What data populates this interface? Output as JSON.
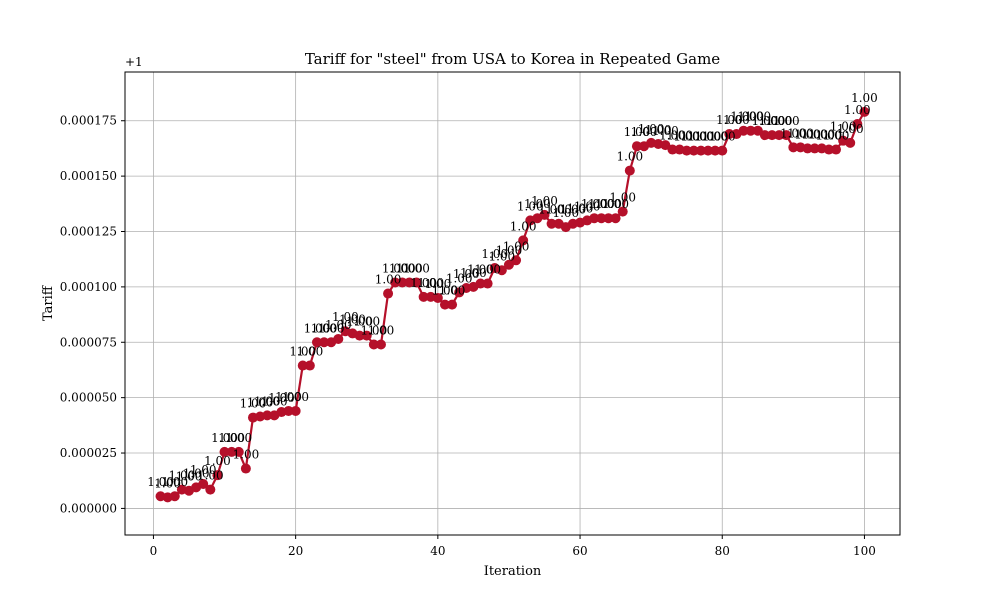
{
  "chart_data": {
    "type": "line",
    "title": "Tariff for \"steel\" from USA to Korea in Repeated Game",
    "xlabel": "Iteration",
    "ylabel": "Tariff",
    "y_offset_text": "+1",
    "xlim": [
      -4,
      105
    ],
    "ylim": [
      -1.2e-05,
      0.000197
    ],
    "x_ticks": [
      0,
      20,
      40,
      60,
      80,
      100
    ],
    "x_tick_labels": [
      "0",
      "20",
      "40",
      "60",
      "80",
      "100"
    ],
    "y_ticks": [
      0,
      2.5e-05,
      5e-05,
      7.5e-05,
      0.0001,
      0.000125,
      0.00015,
      0.000175
    ],
    "y_tick_labels": [
      "0.000000",
      "0.000025",
      "0.000050",
      "0.000075",
      "0.000100",
      "0.000125",
      "0.000150",
      "0.000175"
    ],
    "grid": true,
    "series": [
      {
        "color": "#b5102a",
        "marker": "circle",
        "point_label": "1.00",
        "x": [
          1,
          2,
          3,
          4,
          5,
          6,
          7,
          8,
          9,
          10,
          11,
          12,
          13,
          14,
          15,
          16,
          17,
          18,
          19,
          20,
          21,
          22,
          23,
          24,
          25,
          26,
          27,
          28,
          29,
          30,
          31,
          32,
          33,
          34,
          35,
          36,
          37,
          38,
          39,
          40,
          41,
          42,
          43,
          44,
          45,
          46,
          47,
          48,
          49,
          50,
          51,
          52,
          53,
          54,
          55,
          56,
          57,
          58,
          59,
          60,
          61,
          62,
          63,
          64,
          65,
          66,
          67,
          68,
          69,
          70,
          71,
          72,
          73,
          74,
          75,
          76,
          77,
          78,
          79,
          80,
          81,
          82,
          83,
          84,
          85,
          86,
          87,
          88,
          89,
          90,
          91,
          92,
          93,
          94,
          95,
          96,
          97,
          98,
          99,
          100
        ],
        "y": [
          5.5e-06,
          5e-06,
          5.5e-06,
          8.5e-06,
          8e-06,
          9.5e-06,
          1.1e-05,
          8.5e-06,
          1.5e-05,
          2.55e-05,
          2.55e-05,
          2.55e-05,
          1.8e-05,
          4.1e-05,
          4.15e-05,
          4.2e-05,
          4.2e-05,
          4.35e-05,
          4.4e-05,
          4.4e-05,
          6.45e-05,
          6.45e-05,
          7.5e-05,
          7.5e-05,
          7.5e-05,
          7.65e-05,
          8e-05,
          7.9e-05,
          7.8e-05,
          7.8e-05,
          7.4e-05,
          7.4e-05,
          9.7e-05,
          0.000102,
          0.000102,
          0.000102,
          0.000102,
          9.55e-05,
          9.55e-05,
          9.5e-05,
          9.2e-05,
          9.2e-05,
          9.75e-05,
          9.95e-05,
          0.0001,
          0.0001015,
          0.0001015,
          0.0001085,
          0.0001075,
          0.00011,
          0.000112,
          0.000121,
          0.00013,
          0.000131,
          0.0001325,
          0.0001285,
          0.0001285,
          0.000127,
          0.0001285,
          0.000129,
          0.00013,
          0.000131,
          0.000131,
          0.000131,
          0.000131,
          0.000134,
          0.0001525,
          0.0001635,
          0.0001635,
          0.000165,
          0.0001645,
          0.000164,
          0.000162,
          0.000162,
          0.0001615,
          0.0001615,
          0.0001615,
          0.0001615,
          0.0001615,
          0.0001615,
          0.000169,
          0.000169,
          0.0001705,
          0.0001705,
          0.0001705,
          0.0001685,
          0.0001685,
          0.0001685,
          0.0001685,
          0.000163,
          0.000163,
          0.0001625,
          0.0001625,
          0.0001625,
          0.000162,
          0.000162,
          0.000166,
          0.000165,
          0.0001735,
          0.000179
        ]
      }
    ]
  }
}
